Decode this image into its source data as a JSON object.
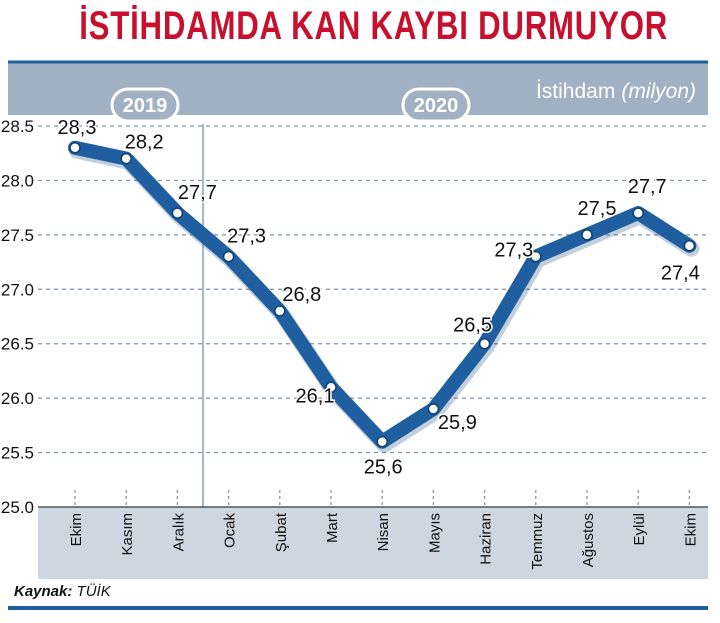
{
  "header": {
    "title": "İSTİHDAMDA KAN KAYBI DURMUYOR"
  },
  "colors": {
    "title": "#c8102e",
    "band": "#9fb1c3",
    "line": "#1f5fa0",
    "rule": "#1f5fa0",
    "category_band": "#cdd7e1"
  },
  "source": {
    "label": "Kaynak:",
    "value": "TÜİK"
  },
  "chart_data": {
    "type": "line",
    "title": "İSTİHDAMDA KAN KAYBI DURMUYOR",
    "series_label_prefix": "İstihdam",
    "series_label_unit": "(milyon)",
    "year_labels": [
      "2019",
      "2020"
    ],
    "categories": [
      "Ekim",
      "Kasım",
      "Aralık",
      "Ocak",
      "Şubat",
      "Mart",
      "Nisan",
      "Mayıs",
      "Haziran",
      "Temmuz",
      "Ağustos",
      "Eylül",
      "Ekim"
    ],
    "values": [
      28.3,
      28.2,
      27.7,
      27.3,
      26.8,
      26.1,
      25.6,
      25.9,
      26.5,
      27.3,
      27.5,
      27.7,
      27.4
    ],
    "value_labels": [
      "28,3",
      "28,2",
      "27,7",
      "27,3",
      "26,8",
      "26,1",
      "25,6",
      "25,9",
      "26,5",
      "27,3",
      "27,5",
      "27,7",
      "27,4"
    ],
    "y_ticks": [
      "25.0",
      "25.5",
      "26.0",
      "26.5",
      "27.0",
      "27.5",
      "28.0",
      "28.5"
    ],
    "ylim": [
      25.0,
      28.5
    ],
    "grid": true
  }
}
